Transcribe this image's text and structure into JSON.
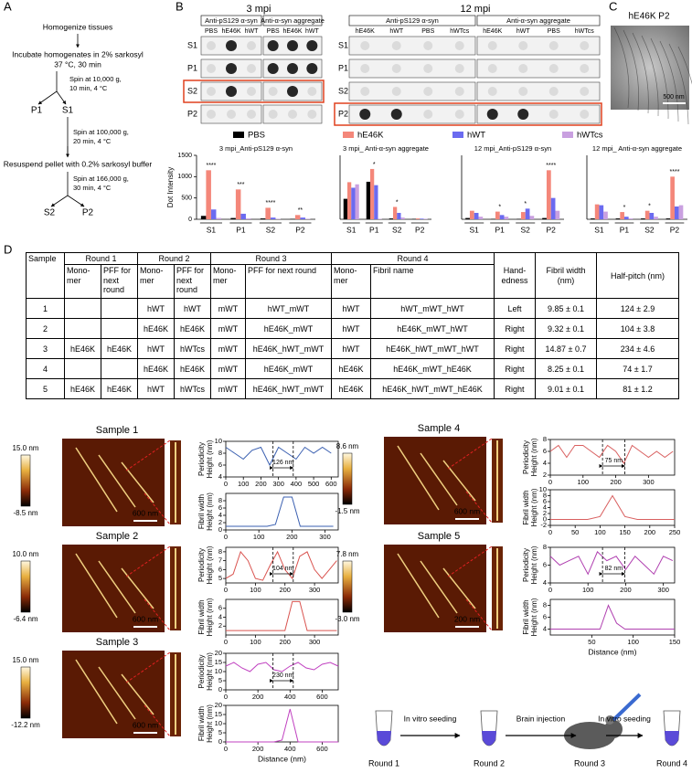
{
  "panel_labels": [
    "A",
    "B",
    "C",
    "D"
  ],
  "flow": {
    "steps": [
      "Homogenize tissues",
      "Incubate homogenates  in 2% sarkosyl",
      "37 °C, 30 min",
      "Resuspend pellet with 0.2% sarkosyl buffer"
    ],
    "spins": [
      [
        "Spin at 10,000 g,",
        "10 min, 4 °C"
      ],
      [
        "Spin at 100,000 g,",
        "20 min, 4 °C"
      ],
      [
        "Spin at 166,000 g,",
        "30 min, 4 °C"
      ]
    ],
    "fractions": [
      "P1",
      "S1",
      "S2",
      "P2"
    ]
  },
  "blots": [
    {
      "title": "3 mpi",
      "rows": [
        "S1",
        "P1",
        "S2",
        "P2"
      ],
      "groups": [
        {
          "name": "Anti-pS129 α-syn",
          "columns": [
            "PBS",
            "hE46K",
            "hWT"
          ]
        },
        {
          "name": "Anti-α-syn aggregate",
          "columns": [
            "PBS",
            "hE46K",
            "hWT"
          ]
        }
      ]
    },
    {
      "title": "12 mpi",
      "rows": [
        "S1",
        "P1",
        "S2",
        "P2"
      ],
      "groups": [
        {
          "name": "Anti-pS129 α-syn",
          "columns": [
            "hE46K",
            "hWT",
            "PBS",
            "hWTcs"
          ]
        },
        {
          "name": "Anti-α-syn aggregate",
          "columns": [
            "hE46K",
            "hWT",
            "PBS",
            "hWTcs"
          ]
        }
      ]
    }
  ],
  "micrograph": {
    "title": "hE46K P2",
    "scale": "500 nm"
  },
  "chart_data": [
    {
      "type": "bar",
      "title": "3 mpi_Anti-pS129 α-syn",
      "ylabel": "Dot Intensity",
      "categories": [
        "S1",
        "P1",
        "S2",
        "P2"
      ],
      "ylim": [
        0,
        1500
      ],
      "yticks": [
        0,
        500,
        1000,
        1500
      ],
      "annotations": [
        "****",
        "***",
        "****",
        "**"
      ],
      "series": [
        {
          "name": "PBS",
          "color": "#000000",
          "values": [
            80,
            30,
            20,
            10
          ]
        },
        {
          "name": "hE46K",
          "color": "#f4877a",
          "values": [
            1150,
            700,
            270,
            100
          ]
        },
        {
          "name": "hWT",
          "color": "#6b6bf0",
          "values": [
            230,
            130,
            40,
            40
          ]
        },
        {
          "name": "hWTcs",
          "color": "#c9a0e0",
          "values": [
            30,
            20,
            10,
            10
          ]
        }
      ]
    },
    {
      "type": "bar",
      "title": "3 mpi_ Anti-α-syn aggregate",
      "categories": [
        "S1",
        "P1",
        "S2",
        "P2"
      ],
      "ylim": [
        0,
        1500
      ],
      "annotations": [
        null,
        "*",
        "*",
        null
      ],
      "series": [
        {
          "color": "#000000",
          "values": [
            480,
            880,
            20,
            10
          ]
        },
        {
          "color": "#f4877a",
          "values": [
            870,
            1180,
            290,
            20
          ]
        },
        {
          "color": "#6b6bf0",
          "values": [
            740,
            800,
            150,
            15
          ]
        },
        {
          "color": "#c9a0e0",
          "values": [
            820,
            10,
            40,
            10
          ]
        }
      ]
    },
    {
      "type": "bar",
      "title": "12 mpi_Anti-pS129 α-syn",
      "categories": [
        "S1",
        "P1",
        "S2",
        "P2"
      ],
      "ylim": [
        0,
        1500
      ],
      "annotations": [
        null,
        "*",
        "*",
        "****"
      ],
      "series": [
        {
          "color": "#000000",
          "values": [
            30,
            10,
            10,
            30
          ]
        },
        {
          "color": "#f4877a",
          "values": [
            200,
            180,
            170,
            1150
          ]
        },
        {
          "color": "#6b6bf0",
          "values": [
            150,
            100,
            250,
            500
          ]
        },
        {
          "color": "#c9a0e0",
          "values": [
            60,
            60,
            80,
            200
          ]
        }
      ]
    },
    {
      "type": "bar",
      "title": "12 mpi_ Anti-α-syn aggregate",
      "categories": [
        "S1",
        "P1",
        "S2",
        "P2"
      ],
      "ylim": [
        0,
        1500
      ],
      "annotations": [
        null,
        "*",
        "*",
        "****"
      ],
      "series": [
        {
          "color": "#000000",
          "values": [
            20,
            20,
            20,
            20
          ]
        },
        {
          "color": "#f4877a",
          "values": [
            350,
            170,
            200,
            1000
          ]
        },
        {
          "color": "#6b6bf0",
          "values": [
            330,
            60,
            150,
            300
          ]
        },
        {
          "color": "#c9a0e0",
          "values": [
            180,
            20,
            60,
            330
          ]
        }
      ]
    },
    {
      "type": "line",
      "color": "#3a5fb0",
      "annotation": "126 nm",
      "xlim": [
        0,
        640
      ],
      "ylim": [
        4,
        10
      ],
      "xticks": [
        0,
        100,
        200,
        300,
        400,
        500,
        600
      ],
      "yticks": [
        4,
        6,
        8,
        10
      ],
      "x": [
        0,
        50,
        100,
        150,
        200,
        250,
        300,
        350,
        400,
        450,
        500,
        550,
        600
      ],
      "values": [
        9,
        8,
        7,
        8.5,
        9,
        6,
        9,
        8,
        7,
        9,
        8,
        9,
        8
      ]
    },
    {
      "type": "line",
      "color": "#3a5fb0",
      "xlim": [
        0,
        340
      ],
      "ylim": [
        0,
        10
      ],
      "xticks": [
        0,
        100,
        200,
        300
      ],
      "yticks": [
        0,
        2,
        4,
        6,
        8
      ],
      "x": [
        0,
        25,
        50,
        75,
        100,
        125,
        150,
        175,
        200,
        225,
        250,
        275,
        300,
        325
      ],
      "values": [
        1,
        1,
        1,
        1,
        1,
        1,
        1.5,
        9,
        9,
        1,
        1,
        1,
        1,
        1
      ]
    },
    {
      "type": "line",
      "color": "#d9534f",
      "annotation": "104 nm",
      "xlim": [
        0,
        380
      ],
      "ylim": [
        4.5,
        8.5
      ],
      "xticks": [
        0,
        100,
        200,
        300
      ],
      "yticks": [
        5,
        6,
        7,
        8
      ],
      "x": [
        0,
        25,
        50,
        75,
        100,
        125,
        150,
        175,
        200,
        225,
        250,
        275,
        300,
        325,
        350,
        375
      ],
      "values": [
        5,
        5.5,
        8,
        7,
        5,
        4.8,
        6.5,
        8,
        6,
        5,
        7.5,
        8,
        6,
        5,
        6,
        7
      ]
    },
    {
      "type": "line",
      "color": "#d9534f",
      "xlim": [
        0,
        380
      ],
      "ylim": [
        0,
        8
      ],
      "xticks": [
        0,
        100,
        200,
        300
      ],
      "yticks": [
        2,
        4,
        6
      ],
      "x": [
        0,
        25,
        50,
        75,
        100,
        125,
        150,
        175,
        200,
        225,
        250,
        275,
        300,
        325,
        350,
        375
      ],
      "values": [
        1,
        1,
        1,
        1,
        1,
        1,
        1,
        1,
        1,
        7.5,
        7.5,
        1,
        1,
        1,
        1,
        1
      ]
    },
    {
      "type": "line",
      "color": "#c040c0",
      "annotation": "230 nm",
      "xlim": [
        0,
        700
      ],
      "ylim": [
        0,
        20
      ],
      "xticks": [
        0,
        200,
        400,
        600
      ],
      "yticks": [
        0,
        5,
        10,
        15,
        20
      ],
      "x": [
        0,
        50,
        100,
        150,
        200,
        250,
        300,
        350,
        400,
        450,
        500,
        550,
        600,
        650,
        700
      ],
      "values": [
        13,
        15,
        12,
        10,
        14,
        15,
        11,
        10,
        13,
        15,
        12,
        11,
        14,
        15,
        13
      ]
    },
    {
      "type": "line",
      "color": "#c040c0",
      "xlabel": "Distance (nm)",
      "xlim": [
        0,
        700
      ],
      "ylim": [
        0,
        20
      ],
      "xticks": [
        0,
        200,
        400,
        600
      ],
      "yticks": [
        0,
        5,
        10,
        15,
        20
      ],
      "x": [
        0,
        50,
        100,
        150,
        200,
        250,
        300,
        350,
        400,
        450,
        500,
        550,
        600,
        650,
        700
      ],
      "values": [
        0,
        0,
        0,
        0,
        0,
        0,
        0,
        1,
        18,
        0,
        0,
        0,
        0,
        0,
        0
      ]
    },
    {
      "type": "line",
      "color": "#d96060",
      "annotation": "75 nm",
      "xlim": [
        0,
        380
      ],
      "ylim": [
        2,
        8
      ],
      "xticks": [
        0,
        100,
        200,
        300
      ],
      "yticks": [
        2,
        4,
        6,
        8
      ],
      "x": [
        0,
        25,
        50,
        75,
        100,
        125,
        150,
        175,
        200,
        225,
        250,
        275,
        300,
        325,
        350,
        375
      ],
      "values": [
        6,
        7,
        5,
        7,
        7,
        6,
        5,
        7,
        6,
        4,
        7,
        6,
        5,
        6,
        5,
        6
      ]
    },
    {
      "type": "line",
      "color": "#d96060",
      "xlim": [
        0,
        250
      ],
      "ylim": [
        -2,
        10
      ],
      "xticks": [
        0,
        50,
        100,
        150,
        200,
        250
      ],
      "yticks": [
        -2,
        0,
        2,
        4,
        6,
        8,
        10
      ],
      "x": [
        0,
        25,
        50,
        75,
        100,
        125,
        150,
        175,
        200,
        225,
        250
      ],
      "values": [
        0,
        0,
        0,
        0,
        1,
        8,
        1,
        0,
        0,
        0,
        0
      ]
    },
    {
      "type": "line",
      "color": "#b040b0",
      "annotation": "82 nm",
      "xlim": [
        0,
        330
      ],
      "ylim": [
        4,
        8
      ],
      "xticks": [
        0,
        100,
        200,
        300
      ],
      "yticks": [
        4,
        6,
        8
      ],
      "x": [
        0,
        25,
        50,
        75,
        100,
        125,
        150,
        175,
        200,
        225,
        250,
        275,
        300,
        325
      ],
      "values": [
        7,
        6,
        6.5,
        7,
        5,
        7.5,
        6.5,
        7,
        5.5,
        7,
        6,
        5,
        7,
        6.5
      ]
    },
    {
      "type": "line",
      "color": "#b040b0",
      "xlabel": "Distance (nm)",
      "xlim": [
        0,
        150
      ],
      "ylim": [
        3,
        9
      ],
      "xticks": [
        50,
        100,
        150
      ],
      "yticks": [
        4,
        6,
        8
      ],
      "x": [
        0,
        10,
        20,
        30,
        40,
        50,
        60,
        70,
        80,
        90,
        100,
        110,
        120,
        130,
        140,
        150
      ],
      "values": [
        4,
        4,
        4,
        4,
        4,
        4,
        4,
        8,
        5,
        4,
        4,
        4,
        4,
        4,
        4,
        4
      ]
    }
  ],
  "profile_labels": {
    "period": [
      "Periodicity",
      "Height (nm)"
    ],
    "width": [
      "Fibril width",
      "Height (nm)"
    ]
  },
  "table": {
    "header": [
      "Sample",
      "Round 1",
      "Round 2",
      "Round 3",
      "Round 4",
      "Hand-edness",
      "Fibril width (nm)",
      "Half-pitch (nm)"
    ],
    "subheader": [
      "Mono-mer",
      "PFF for next round",
      "Mono-mer",
      "PFF for next round",
      "Mono-mer",
      "PFF for next round",
      "Mono-mer",
      "Fibril name"
    ],
    "rows": [
      [
        "1",
        null,
        null,
        "hWT",
        "hWT",
        "mWT",
        "hWT_mWT",
        "hWT",
        "hWT_mWT_hWT",
        "Left",
        "9.85 ± 0.1",
        "124 ± 2.9"
      ],
      [
        "2",
        null,
        null,
        "hE46K",
        "hE46K",
        "mWT",
        "hE46K_mWT",
        "hWT",
        "hE46K_mWT_hWT",
        "Right",
        "9.32 ± 0.1",
        "104 ± 3.8"
      ],
      [
        "3",
        "hE46K",
        "hE46K",
        "hWT",
        "hWTcs",
        "mWT",
        "hE46K_hWT_mWT",
        "hWT",
        "hE46K_hWT_mWT_hWT",
        "Right",
        "14.87 ± 0.7",
        "234 ± 4.6"
      ],
      [
        "4",
        null,
        null,
        "hE46K",
        "hE46K",
        "mWT",
        "hE46K_mWT",
        "hE46K",
        "hE46K_mWT_hE46K",
        "Right",
        "8.25 ± 0.1",
        "74 ± 1.7"
      ],
      [
        "5",
        "hE46K",
        "hE46K",
        "hWT",
        "hWTcs",
        "mWT",
        "hE46K_hWT_mWT",
        "hE46K",
        "hE46K_hWT_mWT_hE46K",
        "Right",
        "9.01 ± 0.1",
        "81 ± 1.2"
      ]
    ]
  },
  "afm": [
    {
      "title": "Sample 1",
      "max": "15.0 nm",
      "min": "-8.5 nm",
      "scale": "600 nm"
    },
    {
      "title": "Sample 2",
      "max": "10.0 nm",
      "min": "-6.4 nm",
      "scale": "600 nm"
    },
    {
      "title": "Sample 3",
      "max": "15.0 nm",
      "min": "-12.2 nm",
      "scale": "600 nm"
    },
    {
      "title": "Sample 4",
      "max": "8.6 nm",
      "min": "-1.5 nm",
      "scale": "600 nm"
    },
    {
      "title": "Sample 5",
      "max": "7.8 nm",
      "min": "-3.0 nm",
      "scale": "200 nm"
    }
  ],
  "schematic": {
    "rounds": [
      "Round 1",
      "Round 2",
      "Round 3",
      "Round 4"
    ],
    "steps": [
      "In vitro seeding",
      "Brain injection",
      "In vitro seeding"
    ]
  }
}
